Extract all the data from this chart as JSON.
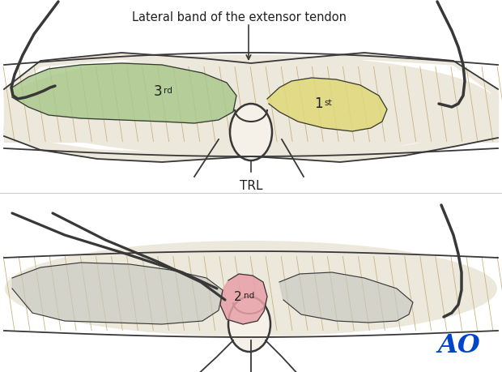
{
  "bg_color": "#ffffff",
  "top_label": "Lateral band of the extensor tendon",
  "trl_label": "TRL",
  "label_3rd": "3",
  "label_1st": "1",
  "label_2nd": "2",
  "color_3rd": "#a8c88a",
  "color_1st": "#e0d878",
  "color_2nd": "#e8a0a8",
  "color_tendon": "#ede8dc",
  "color_tendon_dark": "#d8d0bc",
  "color_stripe": "#c8b480",
  "color_outline": "#383838",
  "color_joint": "#f2ede4",
  "color_gray_shade": "#c8c8c0",
  "color_ao_blue": "#0044cc",
  "figsize": [
    6.2,
    4.59
  ],
  "dpi": 100
}
